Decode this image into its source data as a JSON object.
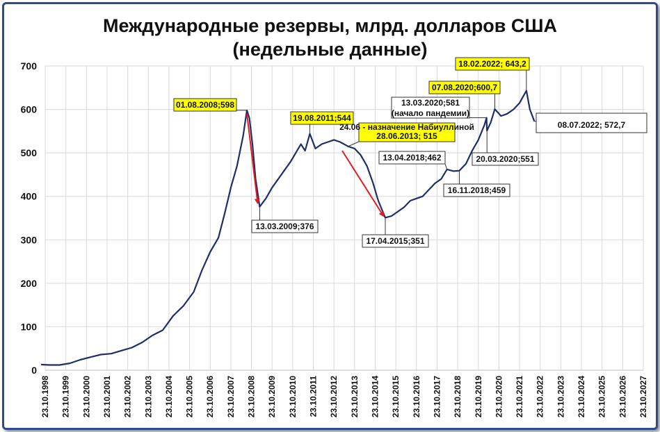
{
  "chart_data": {
    "type": "line",
    "title_line1": "Международные резервы, млрд. долларов США",
    "title_line2": "(недельные данные)",
    "xlabel": "",
    "ylabel": "",
    "ylim": [
      0,
      700
    ],
    "yticks": [
      0,
      100,
      200,
      300,
      400,
      500,
      600,
      700
    ],
    "xticks": [
      "23.10.1998",
      "23.10.1999",
      "23.10.2000",
      "23.10.2001",
      "23.10.2002",
      "23.10.2003",
      "23.10.2004",
      "23.10.2005",
      "23.10.2006",
      "23.10.2007",
      "23.10.2008",
      "23.10.2009",
      "23.10.2010",
      "23.10.2011",
      "23.10.2012",
      "23.10.2013",
      "23.10.2014",
      "23.10.2015",
      "23.10.2016",
      "23.10.2017",
      "23.10.2018",
      "23.10.2019",
      "23.10.2020",
      "23.10.2021",
      "23.10.2022",
      "23.10.2023",
      "23.10.2024",
      "23.10.2025",
      "23.10.2026",
      "23.10.2027"
    ],
    "grid": true,
    "line_color": "#1f2d6b",
    "series": [
      {
        "points": [
          [
            1998.6,
            13
          ],
          [
            1999.0,
            12
          ],
          [
            1999.5,
            12
          ],
          [
            2000.0,
            16
          ],
          [
            2000.5,
            24
          ],
          [
            2001.0,
            30
          ],
          [
            2001.5,
            36
          ],
          [
            2002.0,
            38
          ],
          [
            2002.5,
            45
          ],
          [
            2003.0,
            52
          ],
          [
            2003.5,
            64
          ],
          [
            2004.0,
            80
          ],
          [
            2004.5,
            92
          ],
          [
            2005.0,
            125
          ],
          [
            2005.5,
            148
          ],
          [
            2006.0,
            180
          ],
          [
            2006.4,
            230
          ],
          [
            2006.8,
            272
          ],
          [
            2007.2,
            305
          ],
          [
            2007.5,
            360
          ],
          [
            2007.8,
            420
          ],
          [
            2008.1,
            470
          ],
          [
            2008.4,
            540
          ],
          [
            2008.58,
            598
          ],
          [
            2008.7,
            580
          ],
          [
            2008.85,
            520
          ],
          [
            2009.0,
            440
          ],
          [
            2009.2,
            376
          ],
          [
            2009.5,
            395
          ],
          [
            2009.8,
            420
          ],
          [
            2010.1,
            440
          ],
          [
            2010.4,
            460
          ],
          [
            2010.7,
            480
          ],
          [
            2010.95,
            500
          ],
          [
            2011.2,
            520
          ],
          [
            2011.4,
            505
          ],
          [
            2011.63,
            544
          ],
          [
            2011.9,
            510
          ],
          [
            2012.2,
            520
          ],
          [
            2012.5,
            525
          ],
          [
            2012.8,
            530
          ],
          [
            2013.1,
            525
          ],
          [
            2013.49,
            515
          ],
          [
            2013.8,
            510
          ],
          [
            2014.1,
            495
          ],
          [
            2014.4,
            470
          ],
          [
            2014.7,
            430
          ],
          [
            2014.95,
            390
          ],
          [
            2015.29,
            351
          ],
          [
            2015.6,
            355
          ],
          [
            2015.9,
            365
          ],
          [
            2016.2,
            375
          ],
          [
            2016.5,
            390
          ],
          [
            2016.8,
            395
          ],
          [
            2017.1,
            400
          ],
          [
            2017.4,
            415
          ],
          [
            2017.7,
            430
          ],
          [
            2018.0,
            440
          ],
          [
            2018.28,
            462
          ],
          [
            2018.6,
            458
          ],
          [
            2018.88,
            459
          ],
          [
            2019.2,
            475
          ],
          [
            2019.5,
            505
          ],
          [
            2019.8,
            530
          ],
          [
            2020.1,
            565
          ],
          [
            2020.2,
            581
          ],
          [
            2020.22,
            551
          ],
          [
            2020.4,
            570
          ],
          [
            2020.6,
            600.7
          ],
          [
            2020.9,
            585
          ],
          [
            2021.2,
            590
          ],
          [
            2021.5,
            600
          ],
          [
            2021.8,
            615
          ],
          [
            2022.13,
            643.2
          ],
          [
            2022.3,
            600
          ],
          [
            2022.52,
            572.7
          ]
        ]
      }
    ],
    "annotations": [
      {
        "text": "01.08.2008;598",
        "highlight": true
      },
      {
        "text": "13.03.2009;376",
        "highlight": false
      },
      {
        "text": "19.08.2011;544",
        "highlight": true
      },
      {
        "text": "24.06 - назначение Набиуллиной",
        "text2": "28.06.2013; 515",
        "highlight": true
      },
      {
        "text": "17.04.2015;351",
        "highlight": false
      },
      {
        "text": "13.04.2018;462",
        "highlight": false
      },
      {
        "text": "16.11.2018;459",
        "highlight": false
      },
      {
        "text": "13.03.2020;581",
        "text2": "(начало пандемии)",
        "highlight": false
      },
      {
        "text": "20.03.2020;551",
        "highlight": false
      },
      {
        "text": "07.08.2020;600,7",
        "highlight": true
      },
      {
        "text": "18.02.2022; 643,2",
        "highlight": true
      },
      {
        "text": "08.07.2022; 572,7",
        "highlight": false
      }
    ]
  }
}
